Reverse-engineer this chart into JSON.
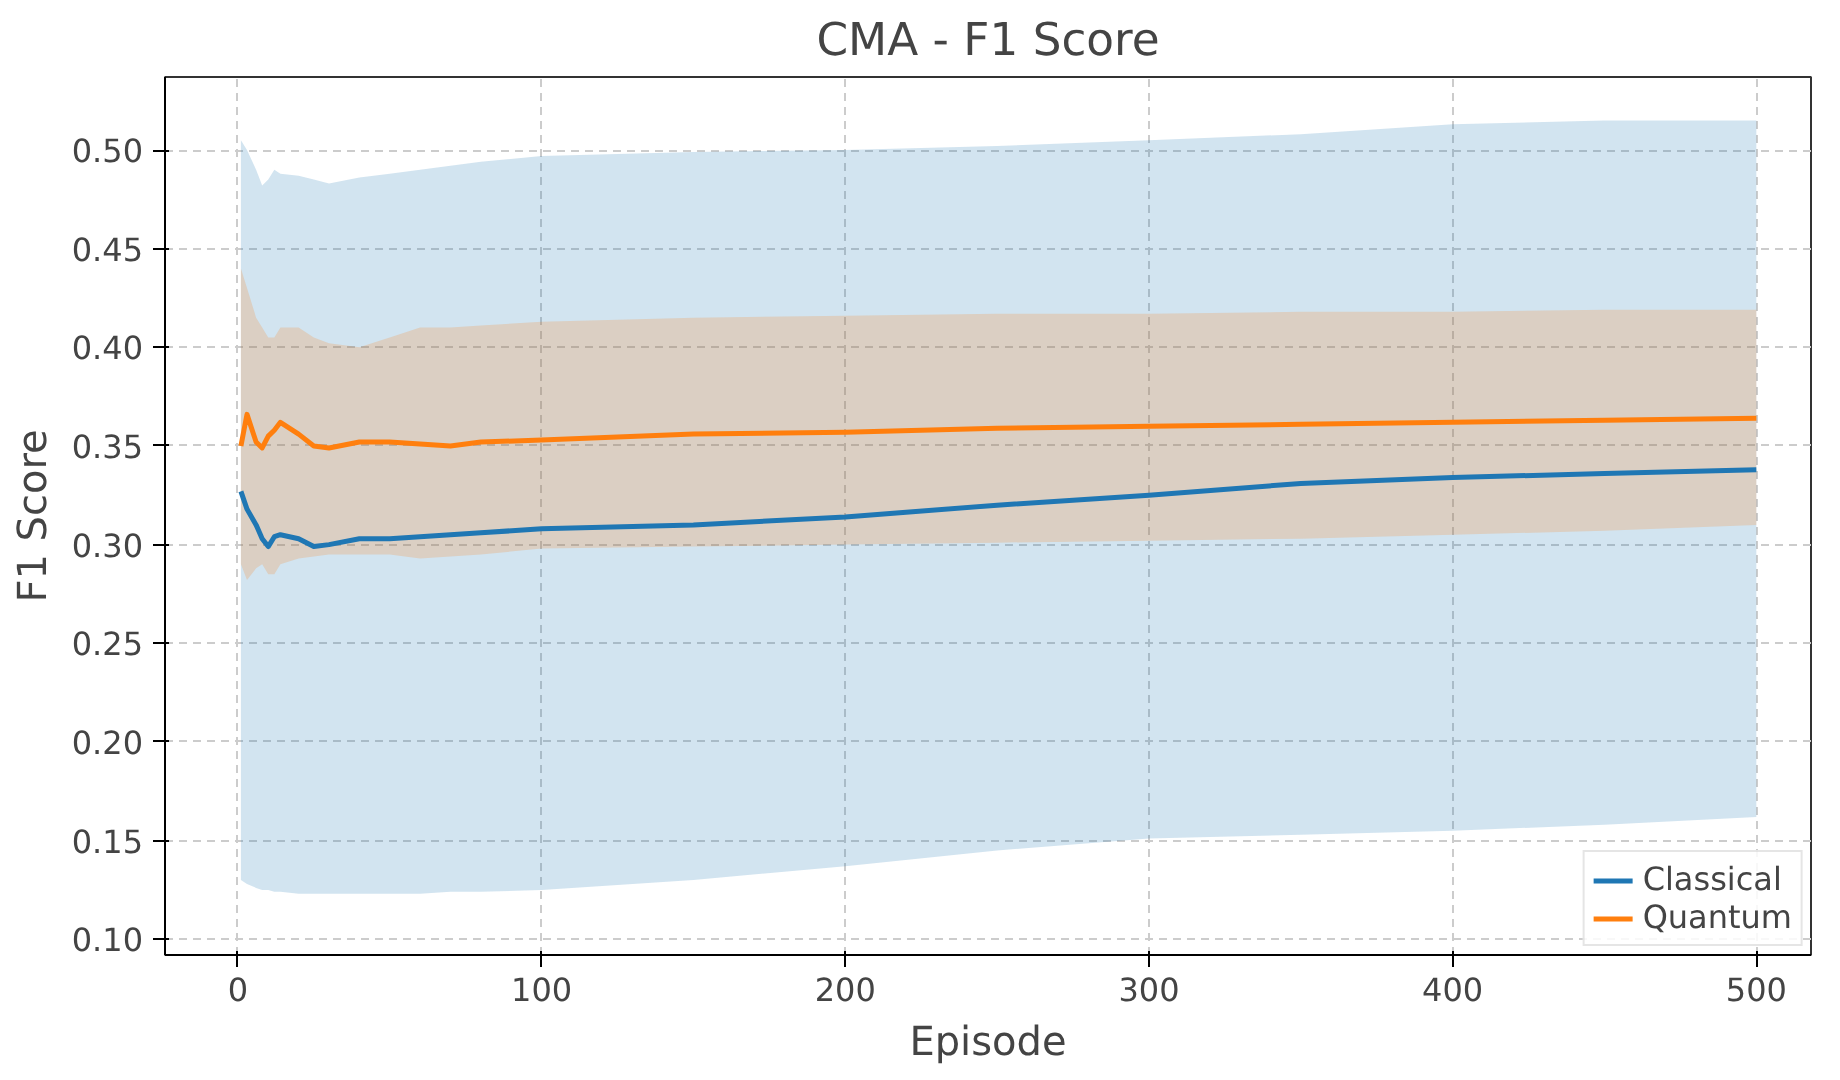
{
  "chart_data": {
    "type": "line",
    "title": "CMA - F1 Score",
    "xlabel": "Episode",
    "ylabel": "F1 Score",
    "x": [
      1,
      3,
      6,
      8,
      10,
      12,
      14,
      20,
      25,
      30,
      40,
      50,
      60,
      70,
      80,
      100,
      150,
      200,
      250,
      300,
      350,
      400,
      450,
      500
    ],
    "series": [
      {
        "name": "Classical",
        "color": "#1f77b4",
        "values": [
          0.327,
          0.318,
          0.31,
          0.303,
          0.299,
          0.304,
          0.305,
          0.303,
          0.299,
          0.3,
          0.303,
          0.303,
          0.304,
          0.305,
          0.306,
          0.308,
          0.31,
          0.314,
          0.32,
          0.325,
          0.331,
          0.334,
          0.336,
          0.338
        ],
        "upper": [
          0.505,
          0.5,
          0.49,
          0.482,
          0.485,
          0.49,
          0.488,
          0.487,
          0.485,
          0.483,
          0.486,
          0.488,
          0.49,
          0.492,
          0.494,
          0.497,
          0.499,
          0.5,
          0.502,
          0.505,
          0.508,
          0.513,
          0.515,
          0.515
        ],
        "lower": [
          0.13,
          0.128,
          0.126,
          0.125,
          0.125,
          0.124,
          0.124,
          0.123,
          0.123,
          0.123,
          0.123,
          0.123,
          0.123,
          0.124,
          0.124,
          0.125,
          0.13,
          0.137,
          0.145,
          0.151,
          0.153,
          0.155,
          0.158,
          0.162
        ]
      },
      {
        "name": "Quantum",
        "color": "#ff7f0e",
        "values": [
          0.35,
          0.366,
          0.352,
          0.349,
          0.355,
          0.358,
          0.362,
          0.356,
          0.35,
          0.349,
          0.352,
          0.352,
          0.351,
          0.35,
          0.352,
          0.353,
          0.356,
          0.357,
          0.359,
          0.36,
          0.361,
          0.362,
          0.363,
          0.364
        ],
        "upper": [
          0.44,
          0.43,
          0.415,
          0.41,
          0.405,
          0.405,
          0.41,
          0.41,
          0.405,
          0.402,
          0.4,
          0.405,
          0.41,
          0.41,
          0.411,
          0.413,
          0.415,
          0.416,
          0.417,
          0.417,
          0.418,
          0.418,
          0.419,
          0.419
        ],
        "lower": [
          0.29,
          0.282,
          0.288,
          0.29,
          0.285,
          0.285,
          0.29,
          0.293,
          0.294,
          0.295,
          0.295,
          0.295,
          0.293,
          0.294,
          0.295,
          0.298,
          0.299,
          0.3,
          0.301,
          0.302,
          0.303,
          0.305,
          0.307,
          0.31
        ]
      }
    ],
    "xlim": [
      -24,
      518
    ],
    "ylim": [
      0.092,
      0.537
    ],
    "xticks": [
      0,
      100,
      200,
      300,
      400,
      500
    ],
    "yticks": [
      {
        "value": 0.1,
        "label": "0.10"
      },
      0.15,
      {
        "value": 0.2,
        "label": "0.20"
      },
      0.25,
      {
        "value": 0.3,
        "label": "0.30"
      },
      0.35,
      {
        "value": 0.4,
        "label": "0.40"
      },
      0.45,
      {
        "value": 0.5,
        "label": "0.50"
      }
    ],
    "grid": true,
    "legend": "bottom right",
    "line_style": "solid"
  }
}
